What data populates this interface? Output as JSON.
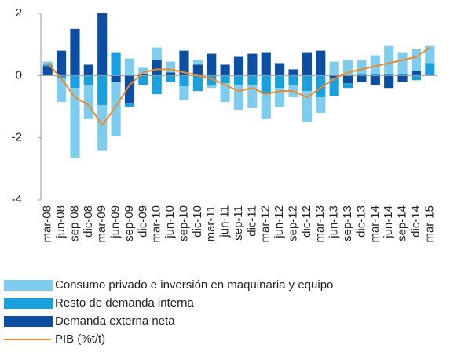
{
  "chart_data": {
    "type": "bar-line",
    "categories": [
      "mar-08",
      "jun-08",
      "sep-08",
      "dic-08",
      "mar-09",
      "jun-09",
      "sep-09",
      "dic-09",
      "mar-10",
      "jun-10",
      "sep-10",
      "dic-10",
      "mar-11",
      "jun-11",
      "sep-11",
      "dic-11",
      "mar-12",
      "jun-12",
      "sep-12",
      "dic-12",
      "mar-13",
      "jun-13",
      "sep-13",
      "dic-13",
      "mar-14",
      "jun-14",
      "sep-14",
      "dic-14",
      "mar-15"
    ],
    "series": [
      {
        "name": "Consumo privado e inversión en maquinaria y equipo",
        "color": "#7fcdee",
        "kind": "bar",
        "values": [
          0.1,
          -0.75,
          -2.25,
          -1.1,
          -1.45,
          -1.75,
          0.55,
          0.2,
          0.4,
          0.35,
          -0.45,
          0.15,
          -0.1,
          -0.6,
          -0.8,
          -0.75,
          -0.8,
          -0.6,
          -0.4,
          -1.0,
          -0.5,
          0.45,
          0.5,
          0.45,
          0.6,
          0.9,
          0.7,
          0.7,
          0.55
        ]
      },
      {
        "name": "Resto de demanda interna",
        "color": "#1aa0dc",
        "kind": "bar",
        "values": [
          0.05,
          -0.1,
          -0.4,
          -0.3,
          -0.95,
          0.75,
          -0.1,
          -0.3,
          -0.6,
          -0.2,
          -0.35,
          -0.5,
          -0.3,
          -0.25,
          -0.3,
          -0.3,
          -0.6,
          -0.4,
          -0.3,
          -0.5,
          -0.7,
          -0.55,
          -0.15,
          0.05,
          0.05,
          0.05,
          0.05,
          -0.15,
          0.4
        ]
      },
      {
        "name": "Demanda externa neta",
        "color": "#0b4ea2",
        "kind": "bar",
        "values": [
          0.3,
          0.8,
          1.5,
          0.35,
          2.0,
          -0.2,
          -0.9,
          0.05,
          0.5,
          0.1,
          0.8,
          0.35,
          0.7,
          0.35,
          0.6,
          0.7,
          0.75,
          0.4,
          0.2,
          0.75,
          0.8,
          -0.1,
          -0.25,
          -0.2,
          -0.3,
          -0.4,
          -0.2,
          0.15,
          0.0
        ]
      },
      {
        "name": "PIB (%t/t)",
        "color": "#f0882a",
        "kind": "line",
        "values": [
          0.4,
          -0.1,
          -0.7,
          -0.95,
          -1.6,
          -1.0,
          -0.3,
          0.1,
          0.2,
          0.2,
          0.1,
          0.0,
          -0.1,
          -0.3,
          -0.5,
          -0.4,
          -0.6,
          -0.5,
          -0.5,
          -0.7,
          -0.4,
          -0.1,
          0.1,
          0.2,
          0.3,
          0.4,
          0.5,
          0.6,
          0.9
        ]
      }
    ],
    "ylim": [
      -4,
      2
    ],
    "yticks": [
      -4,
      -2,
      0,
      2
    ]
  }
}
